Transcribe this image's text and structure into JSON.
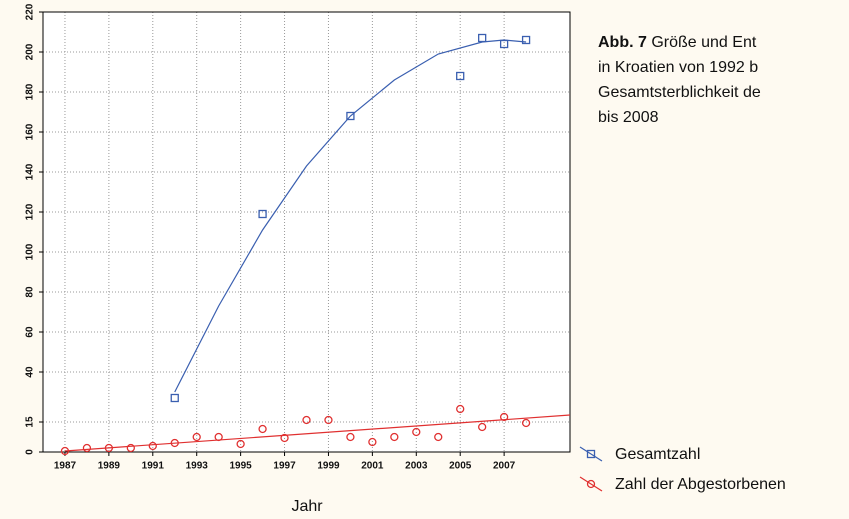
{
  "chart_data": {
    "type": "scatter",
    "caption": {
      "label": "Abb. 7",
      "lines": [
        "Größe und Ent",
        "in Kroatien von 1992 b",
        "Gesamtsterblichkeit de",
        "bis 2008"
      ]
    },
    "xlabel": "Jahr",
    "xlim": [
      1986,
      2010
    ],
    "xticks": [
      1987,
      1989,
      1991,
      1993,
      1995,
      1997,
      1999,
      2001,
      2003,
      2005,
      2007
    ],
    "ylim": [
      0,
      220
    ],
    "yticks": [
      0,
      15,
      40,
      60,
      80,
      100,
      120,
      140,
      160,
      180,
      200,
      220
    ],
    "grid": true,
    "legend": "lower right",
    "series": [
      {
        "name": "Gesamtzahl",
        "color": "#3a5fb0",
        "marker": "square",
        "x": [
          1992,
          1996,
          2000,
          2005,
          2006,
          2007,
          2008
        ],
        "values": [
          27,
          119,
          168,
          188,
          207,
          204,
          206
        ],
        "trend": {
          "x": [
            1992,
            1994,
            1996,
            1998,
            2000,
            2002,
            2004,
            2006,
            2007,
            2008
          ],
          "values": [
            30,
            73,
            111,
            143,
            168,
            186,
            199,
            205,
            206,
            205
          ]
        }
      },
      {
        "name": "Zahl der Abgestorbenen",
        "color": "#e03030",
        "marker": "circle",
        "x": [
          1987,
          1988,
          1989,
          1990,
          1991,
          1992,
          1993,
          1994,
          1995,
          1996,
          1997,
          1998,
          1999,
          2000,
          2001,
          2002,
          2003,
          2004,
          2005,
          2006,
          2007,
          2008
        ],
        "values": [
          0.5,
          2,
          2,
          2,
          3,
          4.5,
          7.5,
          7.5,
          4,
          11.5,
          7,
          16,
          16,
          7.5,
          5,
          7.5,
          10,
          7.5,
          21.5,
          12.5,
          17.5,
          14.5
        ],
        "trend": {
          "x": [
            1987,
            2010
          ],
          "values": [
            0.5,
            18.5
          ]
        }
      }
    ]
  }
}
